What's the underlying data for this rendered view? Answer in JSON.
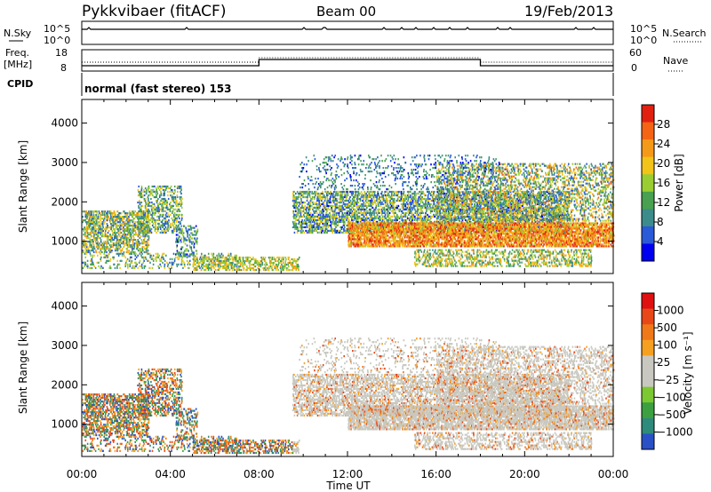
{
  "header": {
    "title": "Pykkvibaer (fitACF)",
    "beam": "Beam 00",
    "date": "19/Feb/2013"
  },
  "strips": {
    "nsky_label": "N.Sky",
    "nsearch_label": "N.Search",
    "nsky_ticks": [
      "10^5",
      "10^0"
    ],
    "nsearch_ticks": [
      "10^5",
      "10^0"
    ],
    "freq_label_1": "Freq.",
    "freq_label_2": "[MHz]",
    "freq_ticks": [
      "18",
      "8"
    ],
    "nave_label": "Nave",
    "nave_ticks": [
      "60",
      "0"
    ],
    "cpid_label": "CPID",
    "cpid_text": "normal (fast stereo) 153"
  },
  "chart_data": [
    {
      "type": "heatmap",
      "name": "power",
      "ylabel": "Slant Range [km]",
      "xlabel": "Time UT",
      "x_ticks": [
        "00:00",
        "04:00",
        "08:00",
        "12:00",
        "16:00",
        "20:00",
        "00:00"
      ],
      "xlim_hours": [
        0,
        24
      ],
      "y_ticks": [
        1000,
        2000,
        3000,
        4000
      ],
      "ylim": [
        180,
        4600
      ],
      "colorbar_label": "Power [dB]",
      "colorbar_ticks": [
        "28",
        "24",
        "20",
        "16",
        "12",
        "8",
        "4"
      ],
      "colorbar_colors": [
        "#0000f0",
        "#2a5ad8",
        "#3c8c8c",
        "#48a050",
        "#9acd32",
        "#f2c318",
        "#f59a18",
        "#f46414",
        "#e12010"
      ]
    },
    {
      "type": "heatmap",
      "name": "velocity",
      "ylabel": "Slant Range [km]",
      "xlabel": "Time UT",
      "x_ticks": [
        "00:00",
        "04:00",
        "08:00",
        "12:00",
        "16:00",
        "20:00",
        "00:00"
      ],
      "xlim_hours": [
        0,
        24
      ],
      "y_ticks": [
        1000,
        2000,
        3000,
        4000
      ],
      "ylim": [
        180,
        4600
      ],
      "colorbar_label": "Velocity [m s⁻¹]",
      "colorbar_ticks": [
        "1000",
        "500",
        "100",
        "25",
        "−25",
        "−100",
        "−500",
        "−1000"
      ],
      "colorbar_colors": [
        "#2a50c8",
        "#2e8a7a",
        "#3ca040",
        "#7cc832",
        "#c8c8c0",
        "#c8c8c0",
        "#f5a020",
        "#f07818",
        "#e84818",
        "#e01010"
      ]
    }
  ],
  "footer": {
    "x_axis_label": "Time UT"
  }
}
